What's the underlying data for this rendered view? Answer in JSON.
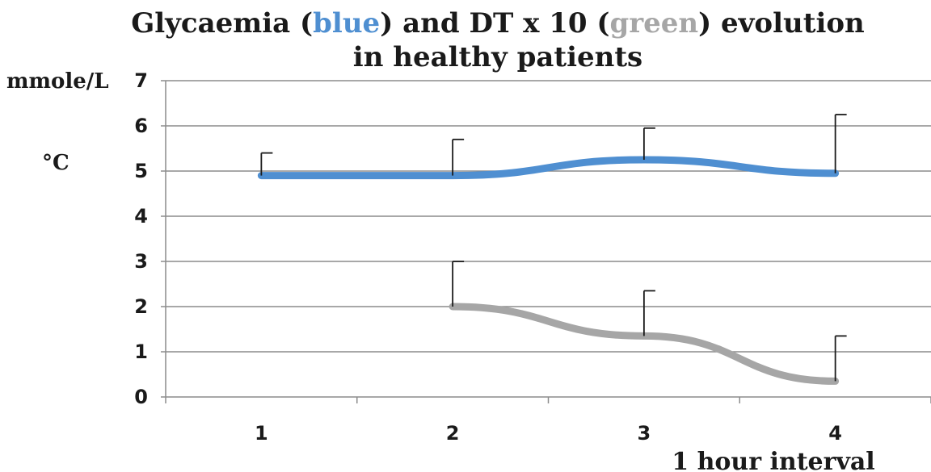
{
  "colors": {
    "glycaemia": "#4f8fd1",
    "dt": "#a6a6a6",
    "grid": "#8c8c8c",
    "error_bar": "#1a1a1a",
    "text": "#1a1a1a"
  },
  "chart_data": {
    "type": "line",
    "title_parts": [
      {
        "text": "Glycaemia (",
        "color": "#1a1a1a"
      },
      {
        "text": "blue",
        "color": "#4f8fd1"
      },
      {
        "text": ") and DT x 10 (",
        "color": "#1a1a1a"
      },
      {
        "text": "green",
        "color": "#a6a6a6"
      },
      {
        "text": ") evolution",
        "color": "#1a1a1a"
      }
    ],
    "title_line2": "in healthy patients",
    "ylabel_primary": "mmole/L",
    "ylabel_secondary": "°C",
    "xlabel": "1 hour  interval",
    "categories": [
      "1",
      "2",
      "3",
      "4"
    ],
    "ylim": [
      0,
      7
    ],
    "yticks": [
      "0",
      "1",
      "2",
      "3",
      "4",
      "5",
      "6",
      "7"
    ],
    "grid": true,
    "series": [
      {
        "key": "glycaemia",
        "x": [
          1,
          2,
          3,
          4
        ],
        "values": [
          4.9,
          4.9,
          5.25,
          4.95
        ],
        "error_upper": [
          5.4,
          5.7,
          5.95,
          6.25
        ]
      },
      {
        "key": "dt",
        "x": [
          2,
          3,
          4
        ],
        "values": [
          2.0,
          1.35,
          0.35
        ],
        "error_upper": [
          3.0,
          2.35,
          1.35
        ]
      }
    ]
  }
}
